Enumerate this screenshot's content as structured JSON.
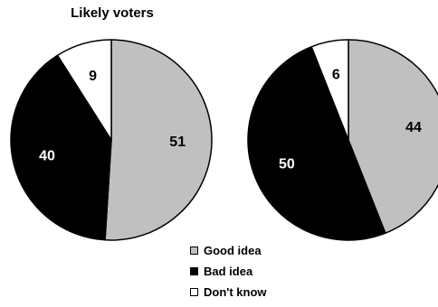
{
  "chart_data": [
    {
      "type": "pie",
      "title": "Likely voters",
      "categories": [
        "Good idea",
        "Bad idea",
        "Don't know"
      ],
      "values": [
        51,
        40,
        9
      ]
    },
    {
      "type": "pie",
      "title": "",
      "categories": [
        "Good idea",
        "Bad idea",
        "Don't know"
      ],
      "values": [
        44,
        50,
        6
      ]
    }
  ],
  "colors": {
    "Good idea": "#c0c0c0",
    "Bad idea": "#000000",
    "Don't know": "#ffffff"
  },
  "legend": [
    "Good idea",
    "Bad idea",
    "Don't know"
  ]
}
